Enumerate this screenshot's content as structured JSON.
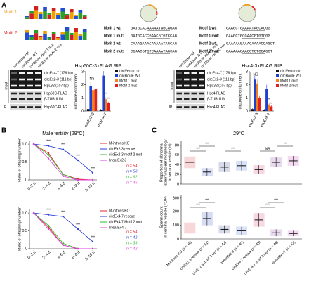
{
  "panel_labels": [
    "A",
    "B",
    "C"
  ],
  "motifs": [
    {
      "name": "Motif 1",
      "color": "#f0a020"
    },
    {
      "name": "Motif 2",
      "color": "#e02020"
    }
  ],
  "sequences": [
    [
      {
        "label": "Motif 1 wt:",
        "seq": "GATGCACAAAAATAGCAGAG"
      },
      {
        "label": "Motif 1 mut:",
        "seq": "GATGCACCGAACGTGTCCAG"
      },
      {
        "label": "Motif 2 wt:",
        "seq": "CAAAGAAACAAAAATAGCAG"
      },
      {
        "label": "Motif 2 mut:",
        "seq": "CGAACGTGTCAAAATAGCAG"
      }
    ],
    [
      {
        "label": "Motif 1 wt:",
        "seq": "GAAGCTGAAAATAGCACGG"
      },
      {
        "label": "Motif 1 mut:",
        "seq": "GAAGCTGCGAACGTGTCGG"
      },
      {
        "label": "Motif 2 wt:",
        "seq": "GAAAAAGAAACAAAACCAGCT"
      },
      {
        "label": "Motif 2 mut:",
        "seq": "GAAAAAGAACGTGTCCAGCT"
      }
    ]
  ],
  "blots": [
    {
      "lanes": [
        "circVector ctrl",
        "circBoule WT",
        "circBoule motif 1 mut",
        "circBoule motif 2 mut"
      ],
      "bands": [
        "circEx4-7 (176 bp)",
        "circEx2-3 (111 bp)",
        "RpL32 (107 bp)",
        "Hsp60C-FLAG",
        "β-TUBULIN",
        "Hsp60C-FLAG"
      ],
      "input": "Input",
      "ip": "IP"
    },
    {
      "lanes": [
        "circVector ctrl",
        "circBoule WT",
        "circBoule motif 1 mut",
        "circBoule motif 2 mut"
      ],
      "bands": [
        "circEx4-7 (176 bp)",
        "circEx2-3 (111 bp)",
        "RpL32 (107 bp)",
        "Hsc4-FLAG",
        "β-TUBULIN",
        "Hsc4-FLAG"
      ],
      "input": "Input",
      "ip": "IP"
    }
  ],
  "chart_data": [
    {
      "type": "bar",
      "title": "Hsp60C-3xFLAG RIP",
      "ylabel": "circboule enrichment",
      "categories": [
        "circEx2-3",
        "circEx4-7"
      ],
      "series": [
        {
          "name": "circVector ctrl",
          "color": "#111111",
          "values": [
            0.15,
            0.1
          ],
          "errors": [
            0.05,
            0.05
          ]
        },
        {
          "name": "circBoule WT",
          "color": "#1f3fd0",
          "values": [
            1.9,
            2.7
          ],
          "errors": [
            0.3,
            0.35
          ]
        },
        {
          "name": "Motif 1 mut",
          "color": "#f08020",
          "values": [
            1.6,
            0.9
          ],
          "errors": [
            0.25,
            0.15
          ]
        },
        {
          "name": "Motif 2 mut",
          "color": "#e02020",
          "values": [
            1.7,
            0.6
          ],
          "errors": [
            0.2,
            0.1
          ]
        }
      ],
      "ylim": [
        0,
        3
      ],
      "yticks": [
        0,
        1,
        2,
        3
      ],
      "annotations": [
        "NS",
        "**",
        "**"
      ]
    },
    {
      "type": "bar",
      "title": "Hsc4-3xFLAG RIP",
      "ylabel": "circboule enrichment",
      "categories": [
        "circEx2-3",
        "circEx4-7"
      ],
      "series": [
        {
          "name": "circVector ctrl",
          "color": "#111111",
          "values": [
            0.15,
            0.1
          ],
          "errors": [
            0.05,
            0.05
          ]
        },
        {
          "name": "circBoule WT",
          "color": "#1f3fd0",
          "values": [
            2.4,
            1.7
          ],
          "errors": [
            0.3,
            0.3
          ]
        },
        {
          "name": "Motif 1 mut",
          "color": "#f08020",
          "values": [
            2.1,
            0.5
          ],
          "errors": [
            0.3,
            0.1
          ]
        },
        {
          "name": "Motif 2 mut",
          "color": "#e02020",
          "values": [
            1.0,
            0.35
          ],
          "errors": [
            0.2,
            0.1
          ]
        }
      ],
      "ylim": [
        0,
        3
      ],
      "yticks": [
        0,
        1,
        2,
        3
      ],
      "annotations": [
        "NS",
        "**",
        "**"
      ]
    },
    {
      "type": "line",
      "title": "Male fertility (29°C)",
      "ylabel": "Ratio of offspring number",
      "categories": [
        "0–2 d",
        "2–4 d",
        "4–6 d",
        "6–8 d",
        "8–10 d"
      ],
      "series": [
        {
          "name": "M-introns KO",
          "color": "#e8232a",
          "n_label": "n = 54",
          "values": [
            1,
            0.75,
            0.15,
            0.02,
            0
          ]
        },
        {
          "name": "circEx2-3 rescue",
          "color": "#2a3fd6",
          "n_label": "n = 58",
          "values": [
            1,
            0.95,
            0.85,
            0.55,
            0.2
          ]
        },
        {
          "name": "circEx2-3 motif 2 mut",
          "color": "#2fbf2f",
          "n_label": "n = 62",
          "values": [
            1,
            0.7,
            0.15,
            0,
            0
          ]
        },
        {
          "name": "linearEx2-3",
          "color": "#e040e0",
          "n_label": "n = 46",
          "values": [
            1,
            0.6,
            0.1,
            0,
            0
          ]
        }
      ],
      "ylim": [
        0,
        1.1
      ],
      "yticks": [
        0,
        0.5,
        {
          "value": 1,
          "label": "1.0"
        }
      ],
      "annotations": [
        "***",
        "***",
        "***",
        "***"
      ]
    },
    {
      "type": "line",
      "ylabel": "Ratio of offspring number",
      "categories": [
        "0–2 d",
        "2–4 d",
        "4–6 d",
        "6–8 d",
        "8–10 d"
      ],
      "series": [
        {
          "name": "M-introns KO",
          "color": "#e8232a",
          "n_label": "n = 54",
          "values": [
            1,
            0.6,
            0.1,
            0,
            0
          ]
        },
        {
          "name": "circEx4-7 rescue",
          "color": "#2a3fd6",
          "n_label": "n = 42",
          "values": [
            1,
            0.95,
            0.9,
            0.55,
            0.2
          ]
        },
        {
          "name": "circEx4-7 Motif 2 mut",
          "color": "#2fbf2f",
          "n_label": "n = 39",
          "values": [
            1,
            0.65,
            0.15,
            0,
            0
          ]
        },
        {
          "name": "linearEx4-7",
          "color": "#e040e0",
          "n_label": "n = 42",
          "values": [
            1,
            0.55,
            0.1,
            0,
            0
          ]
        }
      ],
      "ylim": [
        0,
        1.1
      ],
      "yticks": [
        0,
        0.5,
        {
          "value": 1,
          "label": "1.0"
        }
      ],
      "annotations": [
        "***",
        "***",
        "***",
        "***"
      ]
    },
    {
      "type": "dot",
      "title": "29°C",
      "ylabel_lines": [
        "Proportion of abnormal",
        "sperm nuclear morphology",
        "in seminal vesicle (%)"
      ],
      "categories": [
        null,
        null,
        null,
        null,
        null,
        null,
        null
      ],
      "values": [
        45,
        25,
        35,
        38,
        30,
        45,
        48
      ],
      "errors": [
        12,
        8,
        10,
        10,
        9,
        10,
        10
      ],
      "colors": [
        "#d02020",
        "#2040c0",
        "#203080",
        "#3060d0",
        "#d02060",
        "#8030a0",
        "#c030b0"
      ],
      "ylim": [
        0,
        90
      ],
      "yticks": [
        0,
        20,
        40,
        60,
        80
      ],
      "annotations": [
        "***",
        "***",
        "***",
        "NS",
        "**"
      ]
    },
    {
      "type": "dot",
      "ylabel_lines": [
        "Sperm count",
        "in seminal vesicle (×10²)"
      ],
      "categories": [
        "M-introns KO (n = 48)",
        "circEx2-3 rescue (n = 51)",
        "circEx2-3 motif 2 mut (n = 42)",
        "linearEx2-3 (n = 40)",
        "circEx4-7 rescue (n = 45)",
        "circEx4-7 motif 2 mut (n = 44)",
        "linearEx4-7 (n = 42)"
      ],
      "values": [
        80,
        150,
        70,
        60,
        140,
        45,
        40
      ],
      "errors": [
        40,
        50,
        30,
        30,
        50,
        25,
        20
      ],
      "colors": [
        "#d02020",
        "#2040c0",
        "#203080",
        "#3060d0",
        "#d02060",
        "#8030a0",
        "#c030b0"
      ],
      "ylim": [
        0,
        320
      ],
      "yticks": [
        0,
        100,
        200,
        300
      ],
      "annotations": [
        "***",
        "***",
        "***",
        "***"
      ]
    }
  ]
}
